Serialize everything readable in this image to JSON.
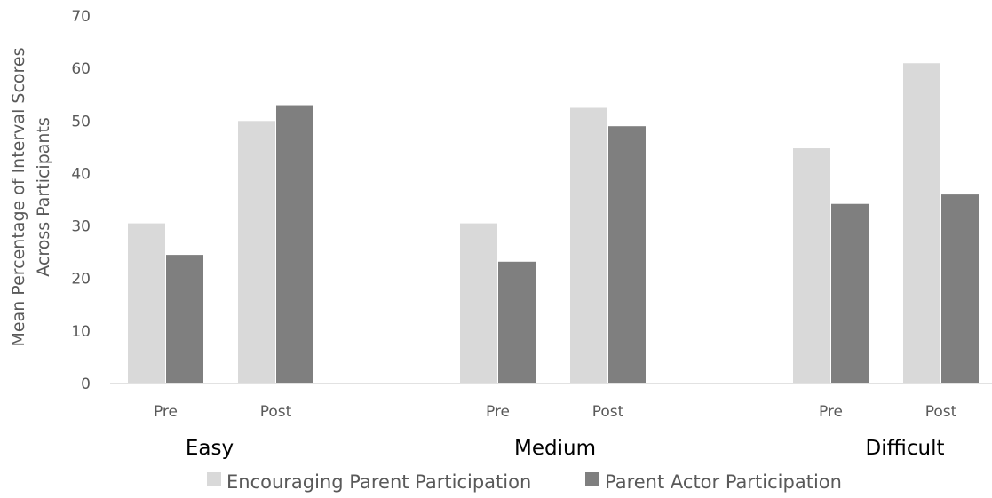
{
  "chart_data": {
    "type": "bar",
    "ylabel": [
      "Mean Percentage of Interval Scores",
      "Across Participants"
    ],
    "ylim": [
      0,
      70
    ],
    "yticks": [
      0,
      10,
      20,
      30,
      40,
      50,
      60,
      70
    ],
    "grid": false,
    "legend_position": "bottom",
    "groups": [
      {
        "label": "Easy",
        "categories": [
          "Pre",
          "Post"
        ]
      },
      {
        "label": "Medium",
        "categories": [
          "Pre",
          "Post"
        ]
      },
      {
        "label": "Difficult",
        "categories": [
          "Pre",
          "Post"
        ]
      }
    ],
    "series": [
      {
        "name": "Encouraging Parent Participation",
        "color": "#d9d9d9",
        "values": [
          30.5,
          50,
          30.5,
          52.5,
          44.8,
          61
        ]
      },
      {
        "name": "Parent Actor Participation",
        "color": "#7f7f7f",
        "values": [
          24.5,
          53,
          23.2,
          49,
          34.2,
          36
        ]
      }
    ]
  }
}
